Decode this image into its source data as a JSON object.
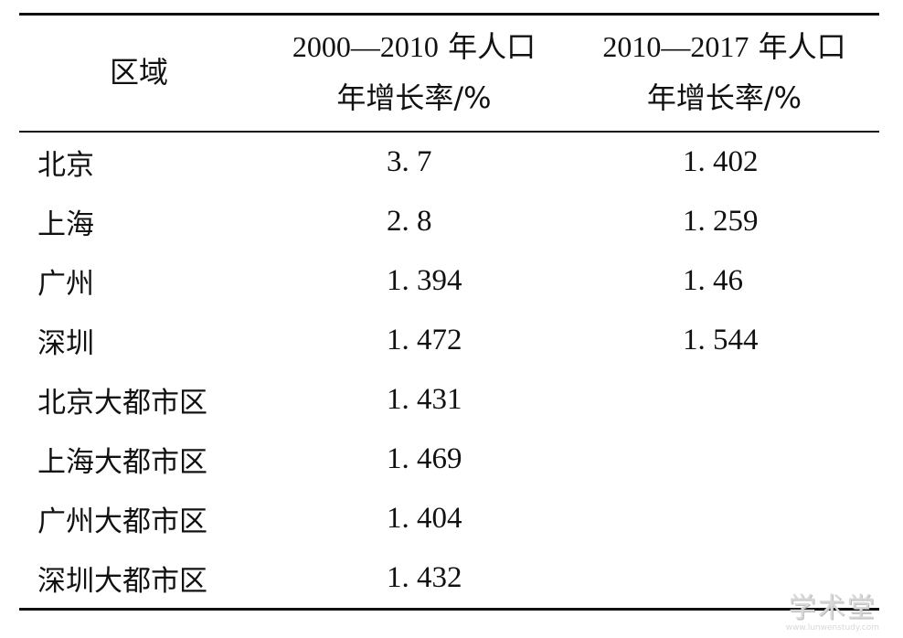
{
  "table": {
    "header": {
      "region": "区域",
      "col1_line1_num": "2000—2010",
      "col1_line1_text": " 年人口",
      "col1_line2": "年增长率/%",
      "col2_line1_num": "2010—2017",
      "col2_line1_text": " 年人口",
      "col2_line2": "年增长率/%"
    },
    "rows": [
      {
        "region": "北京",
        "v1": "3. 7",
        "v2": "1. 402"
      },
      {
        "region": "上海",
        "v1": "2. 8",
        "v2": "1. 259"
      },
      {
        "region": "广州",
        "v1": "1. 394",
        "v2": "1. 46"
      },
      {
        "region": "深圳",
        "v1": "1. 472",
        "v2": "1. 544"
      },
      {
        "region": "北京大都市区",
        "v1": "1. 431",
        "v2": ""
      },
      {
        "region": "上海大都市区",
        "v1": "1. 469",
        "v2": ""
      },
      {
        "region": "广州大都市区",
        "v1": "1. 404",
        "v2": ""
      },
      {
        "region": "深圳大都市区",
        "v1": "1. 432",
        "v2": ""
      }
    ]
  },
  "watermark": {
    "main": "学术堂",
    "sub": "www.lunwenstudy.com"
  }
}
